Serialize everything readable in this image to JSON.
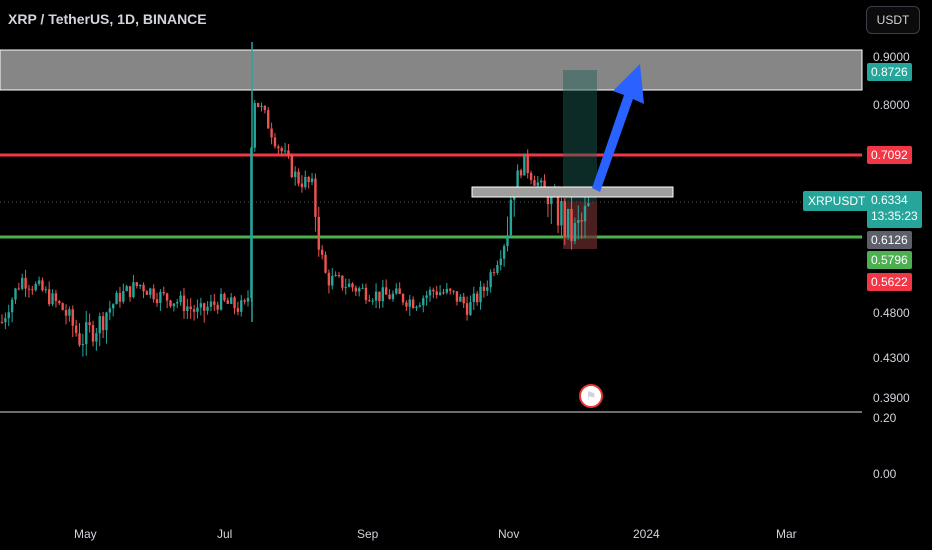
{
  "header": {
    "title": "XRP / TetherUS, 1D, BINANCE",
    "currency_button": "USDT"
  },
  "price_axis": {
    "labels": [
      "0.9000",
      "0.8000",
      "0.4800",
      "0.4300",
      "0.3900",
      "0.20",
      "0.00"
    ],
    "badges": {
      "zone_top": "0.8726",
      "red_line": "0.7092",
      "ticker": "XRPUSDT",
      "last": "0.6334",
      "countdown": "13:35:23",
      "grey_level": "0.6126",
      "green_level": "0.5796",
      "red_level": "0.5622"
    }
  },
  "time_axis": {
    "labels": [
      "May",
      "Jul",
      "Sep",
      "Nov",
      "2024",
      "Mar"
    ]
  },
  "colors": {
    "up": "#26a69a",
    "down": "#ef5350",
    "red_line": "#f23645",
    "green_line": "#4caf50",
    "arrow": "#2962ff",
    "zone": "#a0a0a0"
  },
  "chart_data": {
    "type": "candlestick",
    "symbol": "XRPUSDT",
    "interval": "1D",
    "exchange": "BINANCE",
    "y_range": [
      0.0,
      0.92
    ],
    "close_path": [
      [
        0,
        0.47
      ],
      [
        0.04,
        0.54
      ],
      [
        0.08,
        0.52
      ],
      [
        0.12,
        0.49
      ],
      [
        0.16,
        0.45
      ],
      [
        0.2,
        0.47
      ],
      [
        0.24,
        0.51
      ],
      [
        0.28,
        0.53
      ],
      [
        0.32,
        0.51
      ],
      [
        0.36,
        0.5
      ],
      [
        0.4,
        0.48
      ],
      [
        0.44,
        0.5
      ],
      [
        0.48,
        0.49
      ],
      [
        0.5,
        0.49
      ],
      [
        0.51,
        0.82
      ],
      [
        0.53,
        0.79
      ],
      [
        0.56,
        0.73
      ],
      [
        0.6,
        0.67
      ],
      [
        0.63,
        0.66
      ],
      [
        0.66,
        0.54
      ],
      [
        0.7,
        0.53
      ],
      [
        0.73,
        0.52
      ],
      [
        0.77,
        0.51
      ],
      [
        0.8,
        0.51
      ],
      [
        0.84,
        0.5
      ],
      [
        0.88,
        0.52
      ],
      [
        0.92,
        0.51
      ],
      [
        0.95,
        0.49
      ],
      [
        0.98,
        0.52
      ],
      [
        1.02,
        0.6
      ],
      [
        1.06,
        0.7
      ],
      [
        1.1,
        0.65
      ],
      [
        1.13,
        0.63
      ],
      [
        1.16,
        0.61
      ],
      [
        1.2,
        0.63
      ]
    ],
    "levels": {
      "resistance_zone": [
        0.8726,
        0.9
      ],
      "red_line": 0.7092,
      "green_line": 0.6126,
      "last_price": 0.6334
    }
  }
}
